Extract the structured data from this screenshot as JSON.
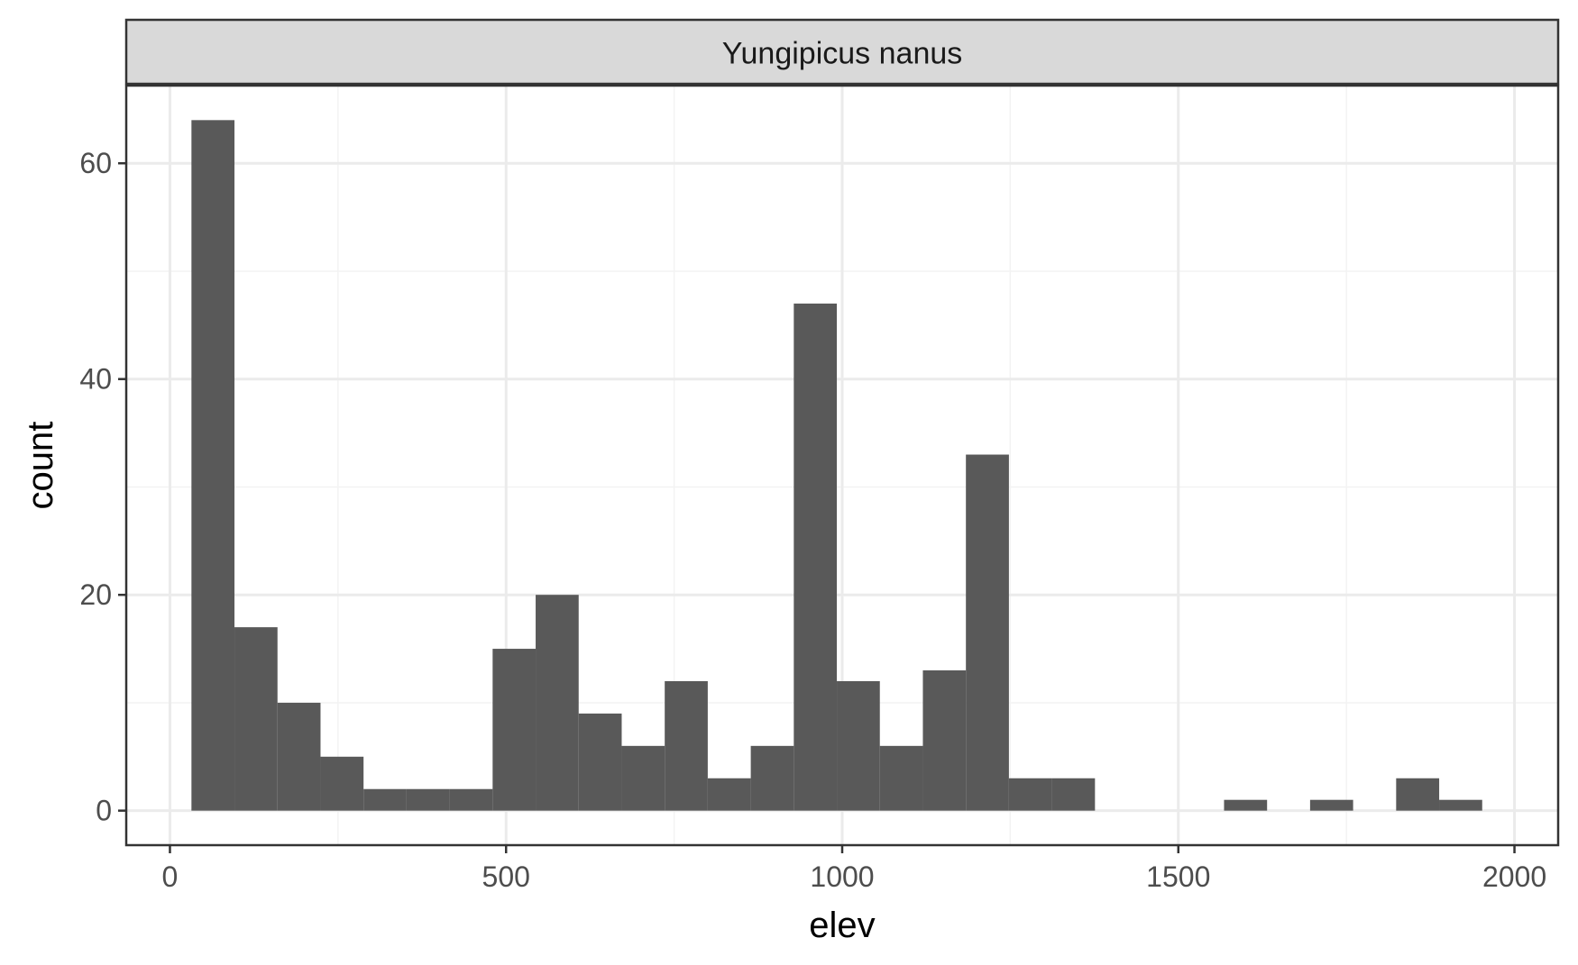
{
  "chart_data": {
    "type": "bar",
    "subtype": "histogram",
    "facet_label": "Yungipicus nanus",
    "xlabel": "elev",
    "ylabel": "count",
    "xlim": [
      -65,
      2065
    ],
    "ylim": [
      -3.2,
      67.2
    ],
    "x_ticks": [
      0,
      500,
      1000,
      1500,
      2000
    ],
    "x_tick_labels": [
      "0",
      "500",
      "1000",
      "1500",
      "2000"
    ],
    "y_ticks": [
      0,
      20,
      40,
      60
    ],
    "y_tick_labels": [
      "0",
      "20",
      "40",
      "60"
    ],
    "grid": true,
    "bin_edges": [
      32,
      96,
      160,
      224,
      288,
      352,
      416,
      480,
      544,
      608,
      672,
      736,
      800,
      864,
      928,
      992,
      1056,
      1120,
      1184,
      1248,
      1312,
      1376,
      1440,
      1504,
      1568,
      1632,
      1696,
      1760,
      1824,
      1888,
      1952
    ],
    "values": [
      64,
      17,
      10,
      5,
      2,
      2,
      2,
      15,
      20,
      9,
      6,
      12,
      3,
      6,
      47,
      12,
      6,
      13,
      33,
      3,
      3,
      0,
      0,
      0,
      1,
      0,
      1,
      0,
      3,
      1
    ],
    "colors": {
      "bar": "#595959",
      "panel_border": "#333333",
      "strip_fill": "#d9d9d9",
      "grid_major": "#ebebeb",
      "grid_minor": "#f3f3f3",
      "tick": "#333333"
    }
  }
}
